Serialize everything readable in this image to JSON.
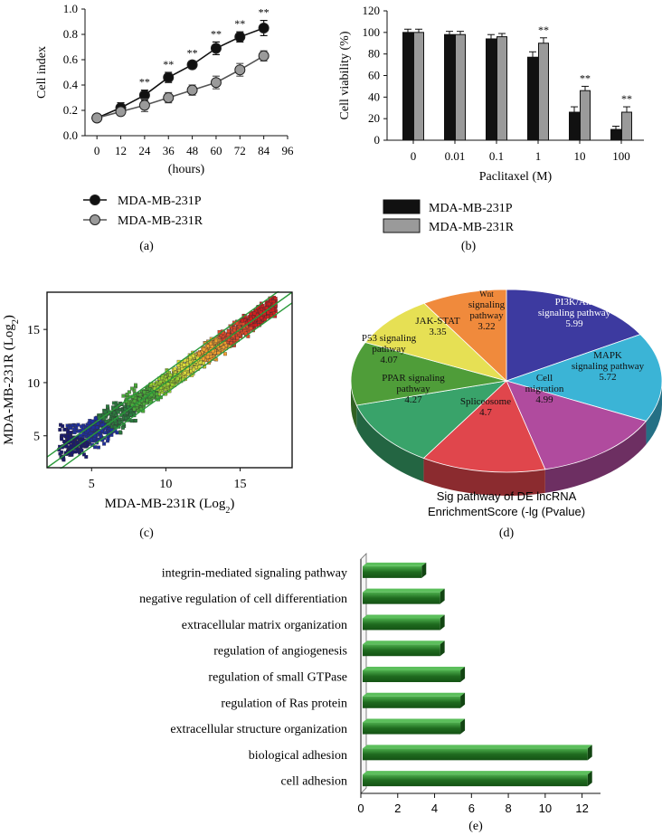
{
  "panel_labels": {
    "a": "(a)",
    "b": "(b)",
    "c": "(c)",
    "d": "(d)",
    "e": "(e)"
  },
  "colors": {
    "black": "#111111",
    "gray": "#9a9a9a",
    "bar_green": "#1f6b1f",
    "bar_green_light": "#3fa23f"
  },
  "chart_data": [
    {
      "id": "a",
      "type": "line",
      "xlabel": "(hours)",
      "ylabel": "Cell index",
      "xlim": [
        -6,
        96
      ],
      "ylim": [
        0,
        1.0
      ],
      "x_ticks": [
        0,
        12,
        24,
        36,
        48,
        60,
        72,
        84,
        96
      ],
      "x_tick_labels": [
        "0",
        "12",
        "24",
        "36",
        "48",
        "60",
        "72",
        "84",
        "96"
      ],
      "y_ticks": [
        0,
        0.2,
        0.4,
        0.6,
        0.8,
        1.0
      ],
      "y_tick_labels": [
        "0.0",
        "0.2",
        "0.4",
        "0.6",
        "0.8",
        "1.0"
      ],
      "x": [
        0,
        12,
        24,
        36,
        48,
        60,
        72,
        84
      ],
      "series": [
        {
          "name": "MDA-MB-231P",
          "values": [
            0.14,
            0.22,
            0.32,
            0.46,
            0.56,
            0.69,
            0.78,
            0.85
          ],
          "errors": [
            0.02,
            0.04,
            0.04,
            0.04,
            0.03,
            0.05,
            0.04,
            0.06
          ]
        },
        {
          "name": "MDA-MB-231R",
          "values": [
            0.14,
            0.19,
            0.24,
            0.3,
            0.36,
            0.42,
            0.52,
            0.63
          ],
          "errors": [
            0.02,
            0.03,
            0.05,
            0.04,
            0.04,
            0.05,
            0.05,
            0.04
          ]
        }
      ],
      "significance": [
        "",
        "",
        "**",
        "**",
        "**",
        "**",
        "**",
        "**"
      ],
      "legend": "bottom"
    },
    {
      "id": "b",
      "type": "bar",
      "xlabel": "Paclitaxel (M)",
      "ylabel": "Cell viability (%)",
      "categories": [
        "0",
        "0.01",
        "0.1",
        "1",
        "10",
        "100"
      ],
      "ylim": [
        0,
        120
      ],
      "y_ticks": [
        0,
        20,
        40,
        60,
        80,
        100,
        120
      ],
      "y_tick_labels": [
        "0",
        "20",
        "40",
        "60",
        "80",
        "100",
        "120"
      ],
      "series": [
        {
          "name": "MDA-MB-231P",
          "values": [
            100,
            98,
            94,
            77,
            26,
            10
          ],
          "errors": [
            3,
            3,
            4,
            5,
            5,
            3
          ]
        },
        {
          "name": "MDA-MB-231R",
          "values": [
            100,
            98,
            96,
            90,
            46,
            26
          ],
          "errors": [
            3,
            3,
            3,
            5,
            4,
            5
          ]
        }
      ],
      "significance": [
        "",
        "",
        "",
        "**",
        "**",
        "**"
      ],
      "legend": "bottom"
    },
    {
      "id": "c",
      "type": "scatter",
      "xlabel": "MDA-MB-231R (Log",
      "xlabel_sub": "2",
      "xlabel_end": ")",
      "ylabel": "MDA-MB-231R (Log",
      "ylabel_sub": "2",
      "ylabel_end": ")",
      "xlim": [
        2,
        18.5
      ],
      "ylim": [
        2,
        18.5
      ],
      "x_ticks": [
        5,
        10,
        15
      ],
      "x_tick_labels": [
        "5",
        "10",
        "15"
      ],
      "y_ticks": [
        5,
        10,
        15
      ],
      "y_tick_labels": [
        "5",
        "10",
        "15"
      ],
      "fold_lines": [
        0,
        1,
        -1
      ],
      "grid": false
    },
    {
      "id": "d",
      "type": "pie",
      "title_line1": "Sig pathway of DE lncRNA",
      "title_line2": "EnrichmentScore (-lg (Pvalue)",
      "slices": [
        {
          "lines": [
            "PI3K/Akt",
            "signaling pathway",
            "5.99"
          ],
          "value": 5.99,
          "color": "#3d3aa0"
        },
        {
          "lines": [
            "MAPK",
            "signaling pathway",
            "5.72"
          ],
          "value": 5.72,
          "color": "#3bb4d6"
        },
        {
          "lines": [
            "Cell",
            "migration",
            "4.99"
          ],
          "value": 4.99,
          "color": "#b04b9e"
        },
        {
          "lines": [
            "Spliceosome",
            "4.7"
          ],
          "value": 4.7,
          "color": "#e0464c"
        },
        {
          "lines": [
            "PPAR signaling",
            "pathway",
            "4.27"
          ],
          "value": 4.27,
          "color": "#39a36a"
        },
        {
          "lines": [
            "P53 signaling",
            "pathway",
            "4.07"
          ],
          "value": 4.07,
          "color": "#4f9d39"
        },
        {
          "lines": [
            "JAK-STAT",
            "3.35"
          ],
          "value": 3.35,
          "color": "#e6e054"
        },
        {
          "lines": [
            "Wnt",
            "signaling",
            "pathway",
            "3.22"
          ],
          "value": 3.22,
          "color": "#f08a3c"
        }
      ]
    },
    {
      "id": "e",
      "type": "bar",
      "orientation": "horizontal",
      "categories": [
        "integrin-mediated signaling pathway",
        "negative regulation of cell differentiation",
        "extracellular matrix organization",
        "regulation of angiogenesis",
        "regulation of small GTPase",
        "regulation of Ras protein",
        "extracellular structure organization",
        "biological adhesion",
        "cell adhesion"
      ],
      "values": [
        3.3,
        4.3,
        4.3,
        4.3,
        5.4,
        5.4,
        5.4,
        12.3,
        12.3
      ],
      "xlim": [
        0,
        13
      ],
      "x_ticks": [
        0,
        2,
        4,
        6,
        8,
        10,
        12
      ],
      "x_tick_labels": [
        "0",
        "2",
        "4",
        "6",
        "8",
        "10",
        "12"
      ]
    }
  ]
}
